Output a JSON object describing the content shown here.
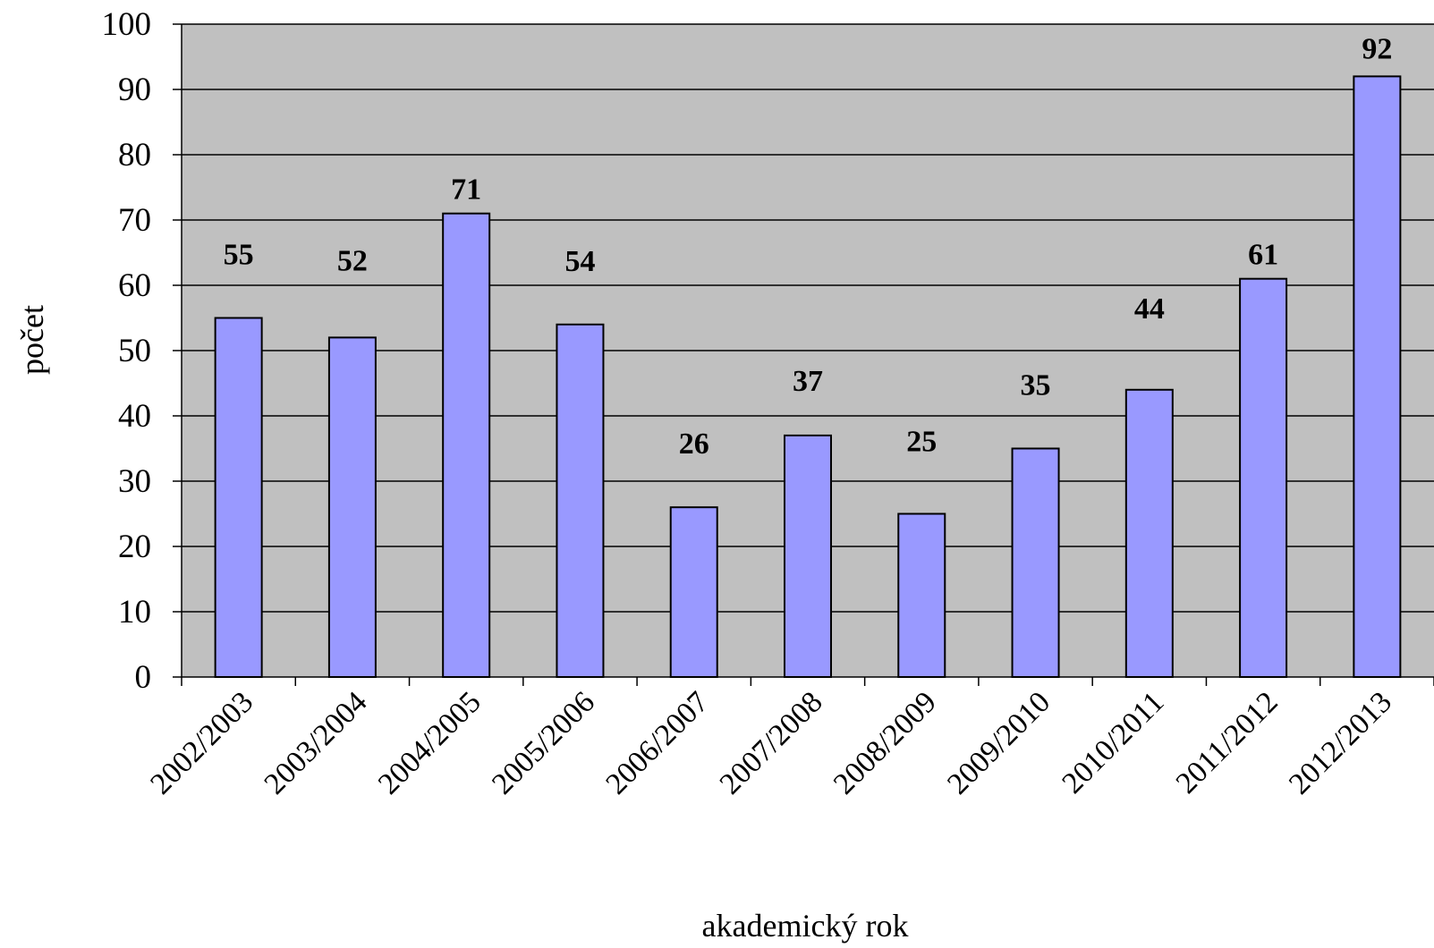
{
  "chart_data": {
    "type": "bar",
    "title": "",
    "xlabel": "akademický rok",
    "ylabel": "počet",
    "ylim": [
      0,
      100
    ],
    "yticks": [
      0,
      10,
      20,
      30,
      40,
      50,
      60,
      70,
      80,
      90,
      100
    ],
    "grid": true,
    "legend": "none",
    "categories": [
      "2002/2003",
      "2003/2004",
      "2004/2005",
      "2005/2006",
      "2006/2007",
      "2007/2008",
      "2008/2009",
      "2009/2010",
      "2010/2011",
      "2011/2012",
      "2012/2013"
    ],
    "values": [
      55,
      52,
      71,
      54,
      26,
      37,
      25,
      35,
      44,
      61,
      92
    ],
    "data_labels": [
      "55",
      "52",
      "71",
      "54",
      "26",
      "37",
      "25",
      "35",
      "44",
      "61",
      "92"
    ],
    "colors": {
      "plot_background": "#c0c0c0",
      "bar_fill": "#9999ff",
      "bar_stroke": "#000000",
      "grid": "#000000"
    }
  }
}
